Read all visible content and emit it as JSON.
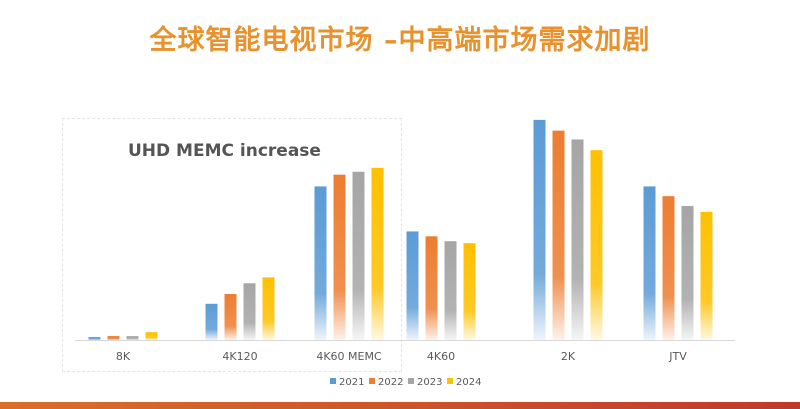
{
  "chart_data": {
    "type": "bar",
    "title": "全球智能电视市场 –中高端市场需求加剧",
    "subtitle": "UHD MEMC increase",
    "categories": [
      "8K",
      "4K120",
      "4K60 MEMC",
      "4K60",
      "2K",
      "JTV"
    ],
    "series": [
      {
        "name": "2021",
        "color": "#5b9bd5",
        "values": [
          3,
          37,
          157,
          111,
          225,
          157
        ]
      },
      {
        "name": "2022",
        "color": "#ed7d31",
        "values": [
          4,
          47,
          169,
          106,
          214,
          147
        ]
      },
      {
        "name": "2023",
        "color": "#a5a5a5",
        "values": [
          4,
          58,
          172,
          101,
          205,
          137
        ]
      },
      {
        "name": "2024",
        "color": "#ffc000",
        "values": [
          8,
          64,
          176,
          99,
          194,
          131
        ]
      }
    ],
    "ylim": [
      0,
      230
    ],
    "xlabel": "",
    "ylabel": "",
    "grid": false,
    "legend": "bottom",
    "title_color": "#e8922e"
  }
}
